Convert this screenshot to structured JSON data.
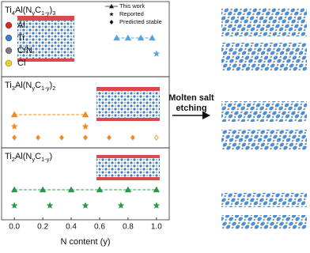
{
  "chart_data": {
    "type": "scatter",
    "xlabel": "N content (y)",
    "xlim": [
      -0.09,
      1.09
    ],
    "xticks": [
      {
        "value": 0,
        "label": "0.0"
      },
      0.2,
      0.4,
      0.6,
      0.8,
      {
        "value": 1,
        "label": "1.0"
      }
    ],
    "atoms": [
      {
        "name": "Al",
        "color": "#d42a2a"
      },
      {
        "name": "Ti",
        "color": "#3f7fc8"
      },
      {
        "name": "C/N",
        "color": "#7a7a7a"
      },
      {
        "name": "Cl",
        "color": "#ecd22a"
      }
    ],
    "legend": [
      {
        "name": "This work",
        "marker": "triangle"
      },
      {
        "name": "Reported",
        "marker": "star"
      },
      {
        "name": "Predicted stable",
        "marker": "diamond"
      }
    ],
    "annotation": [
      "Molten salt",
      "etching"
    ],
    "panels": [
      {
        "title_parts": [
          "Ti",
          "4",
          "Al(N",
          "y",
          "C",
          "1-y",
          ")",
          "3"
        ],
        "color": "#5ba3dc",
        "series": [
          {
            "marker": "triangle",
            "line": true,
            "values": [
              0.72,
              0.8,
              0.89,
              0.97
            ]
          },
          {
            "marker": "star",
            "values": [
              1
            ]
          }
        ]
      },
      {
        "title_parts": [
          "Ti",
          "3",
          "Al(N",
          "y",
          "C",
          "1-y",
          ")",
          "2"
        ],
        "color": "#f08a1e",
        "series": [
          {
            "marker": "triangle",
            "line": true,
            "values": [
              0,
              0.5
            ]
          },
          {
            "marker": "star",
            "values": [
              0,
              0.5
            ]
          },
          {
            "marker": "diamond",
            "values": [
              0,
              0.167,
              0.333,
              0.5,
              0.667,
              0.833,
              1
            ],
            "hollow": [
              false,
              false,
              false,
              false,
              false,
              false,
              true
            ]
          }
        ]
      },
      {
        "title_parts": [
          "Ti",
          "2",
          "Al(N",
          "y",
          "C",
          "1-y",
          ")"
        ],
        "color": "#2a9a4a",
        "series": [
          {
            "marker": "triangle",
            "line": true,
            "values": [
              0,
              0.2,
              0.4,
              0.6,
              0.8,
              1
            ]
          },
          {
            "marker": "star",
            "values": [
              0,
              0.25,
              0.5,
              0.75,
              1
            ]
          }
        ]
      }
    ]
  }
}
